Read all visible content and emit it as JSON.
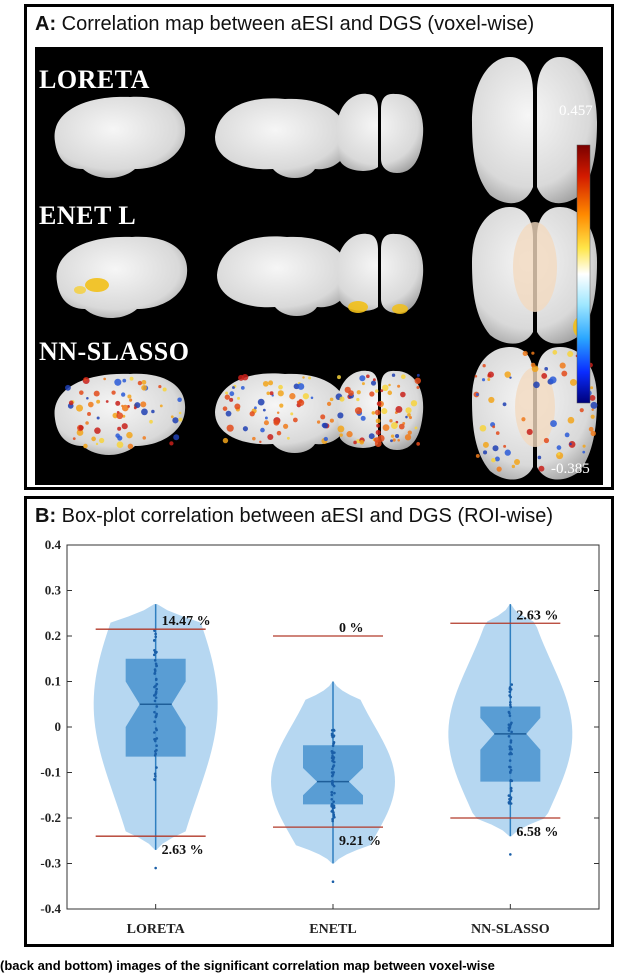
{
  "panel_a": {
    "letter": "A:",
    "title": "Correlation map between aESI and DGS (voxel-wise)",
    "rows": [
      {
        "label": "LORETA"
      },
      {
        "label": "ENET L"
      },
      {
        "label": "NN-SLASSO"
      }
    ],
    "colorbar": {
      "max_label": "0.457",
      "min_label": "-0.385"
    }
  },
  "panel_b": {
    "letter": "B:",
    "title": "Box-plot correlation between aESI and DGS (ROI-wise)"
  },
  "chart_data": {
    "type": "violin-box",
    "categories": [
      "LORETA",
      "ENETL",
      "NN-SLASSO"
    ],
    "ylim": [
      -0.4,
      0.4
    ],
    "yticks": [
      "0.4",
      "0.3",
      "0.2",
      "0.1",
      "0",
      "-0.1",
      "-0.2",
      "-0.3",
      "-0.4"
    ],
    "grid": false,
    "series": [
      {
        "category": "LORETA",
        "median": 0.05,
        "q1": -0.065,
        "q3": 0.15,
        "notch_low": 0.0,
        "notch_high": 0.1,
        "whisker_low": -0.27,
        "whisker_high": 0.27,
        "upper_threshold": {
          "value": 0.215,
          "label": "14.47 %"
        },
        "lower_threshold": {
          "value": -0.24,
          "label": "2.63 %"
        }
      },
      {
        "category": "ENETL",
        "median": -0.12,
        "q1": -0.17,
        "q3": -0.04,
        "notch_low": -0.15,
        "notch_high": -0.09,
        "whisker_low": -0.3,
        "whisker_high": 0.1,
        "upper_threshold": {
          "value": 0.2,
          "label": "0 %"
        },
        "lower_threshold": {
          "value": -0.22,
          "label": "9.21 %"
        }
      },
      {
        "category": "NN-SLASSO",
        "median": -0.015,
        "q1": -0.12,
        "q3": 0.045,
        "notch_low": -0.05,
        "notch_high": 0.02,
        "whisker_low": -0.24,
        "whisker_high": 0.27,
        "upper_threshold": {
          "value": 0.228,
          "label": "2.63 %"
        },
        "lower_threshold": {
          "value": -0.2,
          "label": "6.58 %"
        }
      }
    ]
  },
  "caption": "(back and bottom) images of the significant correlation map between voxel-wise"
}
